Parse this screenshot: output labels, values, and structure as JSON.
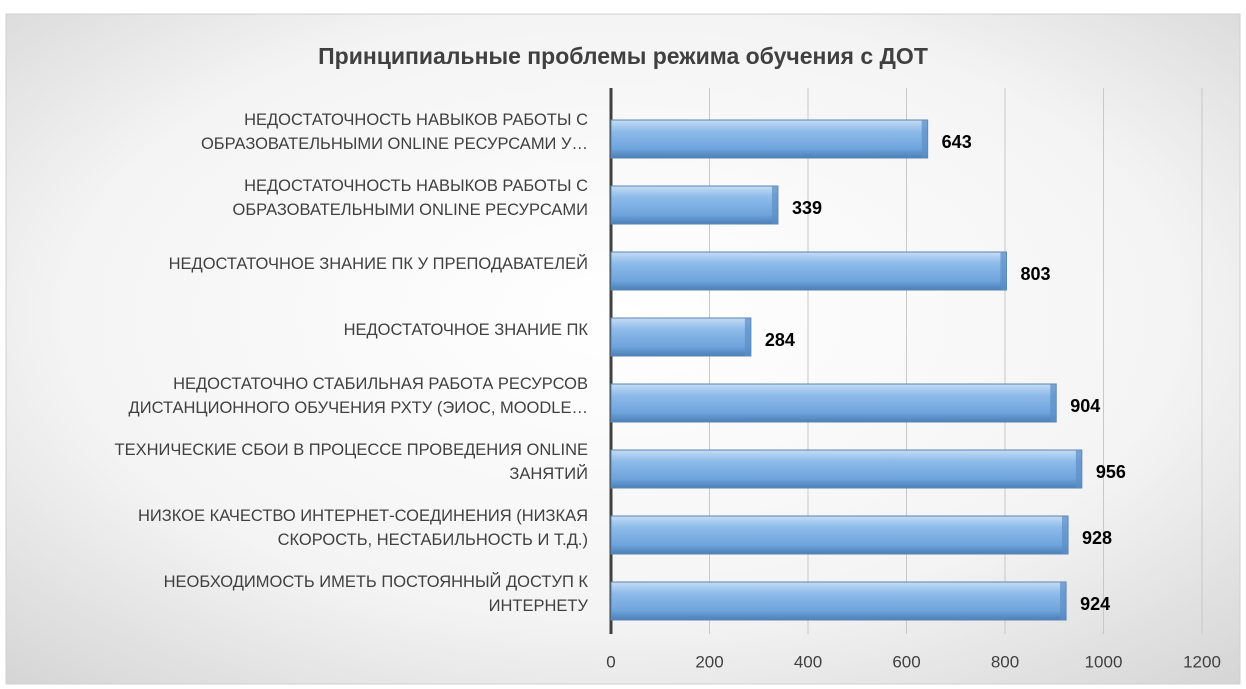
{
  "chart_data": {
    "type": "barh",
    "title": "Принципиальные проблемы режима обучения с ДОТ",
    "categories": [
      "НЕДОСТАТОЧНОСТЬ НАВЫКОВ РАБОТЫ С\nОБРАЗОВАТЕЛЬНЫМИ ONLINE РЕСУРСАМИ У…",
      "НЕДОСТАТОЧНОСТЬ НАВЫКОВ РАБОТЫ С\nОБРАЗОВАТЕЛЬНЫМИ ONLINE РЕСУРСАМИ",
      "НЕДОСТАТОЧНОЕ ЗНАНИЕ ПК У ПРЕПОДАВАТЕЛЕЙ",
      "НЕДОСТАТОЧНОЕ ЗНАНИЕ ПК",
      "НЕДОСТАТОЧНО СТАБИЛЬНАЯ РАБОТА РЕСУРСОВ\nДИСТАНЦИОННОГО ОБУЧЕНИЯ РХТУ (ЭИОС, MOODLE…",
      "ТЕХНИЧЕСКИЕ СБОИ В ПРОЦЕССЕ ПРОВЕДЕНИЯ ONLINE\nЗАНЯТИЙ",
      "НИЗКОЕ КАЧЕСТВО ИНТЕРНЕТ-СОЕДИНЕНИЯ (НИЗКАЯ\nСКОРОСТЬ, НЕСТАБИЛЬНОСТЬ И Т.Д.)",
      "НЕОБХОДИМОСТЬ ИМЕТЬ ПОСТОЯННЫЙ ДОСТУП К\nИНТЕРНЕТУ"
    ],
    "values": [
      643,
      339,
      803,
      284,
      904,
      956,
      928,
      924
    ],
    "color": "#7fb2e6",
    "xlim": [
      0,
      1200
    ],
    "xticks": [
      0,
      200,
      400,
      600,
      800,
      1000,
      1200
    ],
    "grid": true
  }
}
